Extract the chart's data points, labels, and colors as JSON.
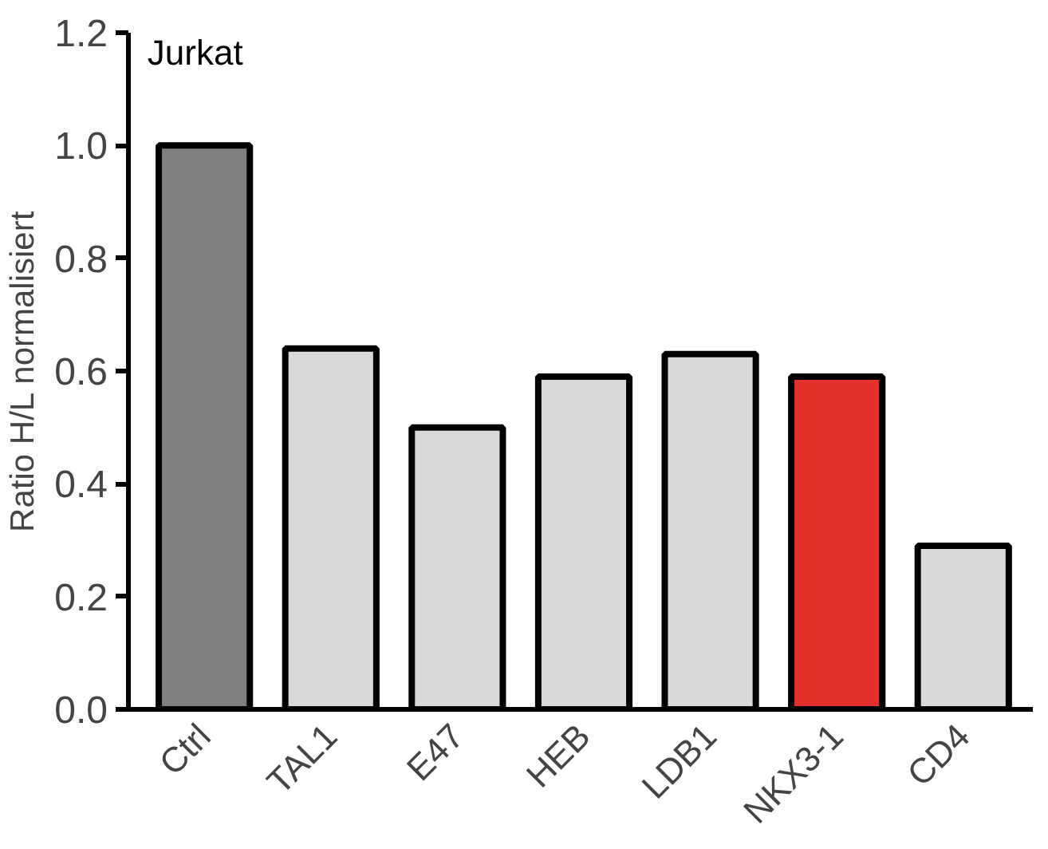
{
  "chart_data": {
    "type": "bar",
    "title": "Jurkat",
    "ylabel": "Ratio H/L normalisiert",
    "categories": [
      "Ctrl",
      "TAL1",
      "E47",
      "HEB",
      "LDB1",
      "NKX3-1",
      "CD4"
    ],
    "values": [
      1.0,
      0.64,
      0.5,
      0.59,
      0.63,
      0.59,
      0.29
    ],
    "colors": [
      "#7f7f7f",
      "#d9d9d9",
      "#d9d9d9",
      "#d9d9d9",
      "#d9d9d9",
      "#e3302b",
      "#d9d9d9"
    ],
    "ylim": [
      0,
      1.2
    ],
    "yticks": [
      {
        "value": 0,
        "label": "0.0"
      },
      0.2,
      0.4,
      0.6,
      0.8,
      {
        "value": 1,
        "label": "1.0"
      },
      1.2
    ],
    "grid": false
  }
}
